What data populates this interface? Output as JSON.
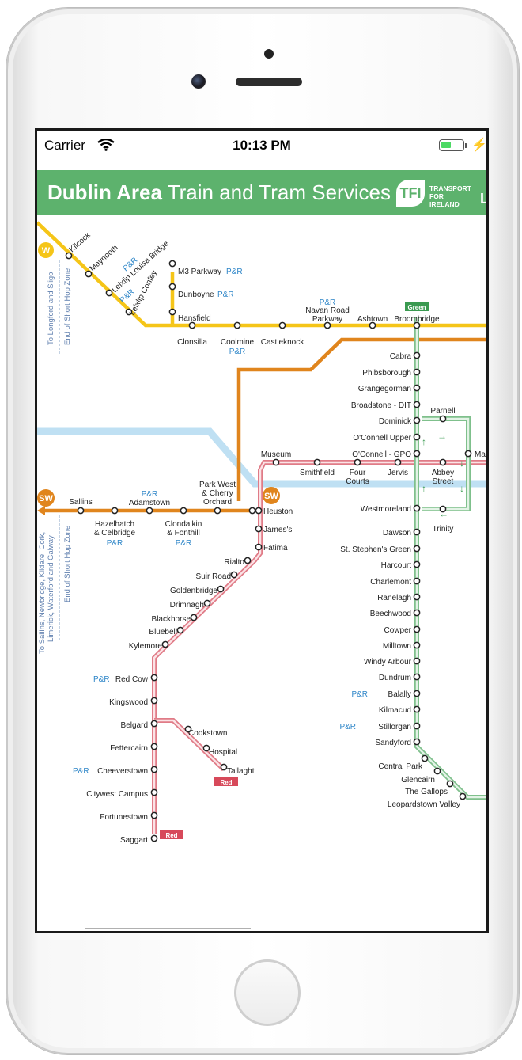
{
  "status_bar": {
    "carrier": "Carrier",
    "time": "10:13 PM"
  },
  "banner": {
    "title_bold": "Dublin Area",
    "title_rest": " Train and Tram Services",
    "logo": "TFI",
    "brand_lines": [
      "TRANSPORT",
      "FOR",
      "IRELAND"
    ],
    "cut_text": "Le"
  },
  "colors": {
    "banner": "#5db26d",
    "yellow_line": "#f5c518",
    "orange_line": "#e0851d",
    "red_luas": "#d7495a",
    "green_luas": "#5aa86a",
    "dart_blue": "#bfe0f3",
    "pr_blue": "#2e86c8"
  },
  "map": {
    "pr": "P&R",
    "badges": {
      "west": "W",
      "southwest": "SW",
      "heuston_sw": "SW"
    },
    "line_tags": {
      "green": "Green",
      "red1": "Red",
      "red2": "Red"
    },
    "side_notes": {
      "west_dest": "To Longford and Sligo",
      "west_zone": "End of Short Hop Zone",
      "sw_dest1": "To Sallins, Newbridge, Kildare, Cork,",
      "sw_dest2": "Limerick, Waterford and Galway",
      "sw_zone": "End of Short Hop Zone"
    },
    "yellow_stations": [
      "Kilcock",
      "Maynooth",
      "Leixlip Louisa Bridge",
      "Leixlip Confey",
      "M3 Parkway",
      "Dunboyne",
      "Hansfield",
      "Clonsilla",
      "Coolmine",
      "Castleknock",
      "Navan Road",
      "Parkway",
      "Ashtown",
      "Broombridge"
    ],
    "orange_stations": [
      "Sallins",
      "Hazelhatch",
      "& Celbridge",
      "Adamstown",
      "Clondalkin",
      "& Fonthill",
      "Park West",
      "& Cherry",
      "Orchard",
      "Heuston"
    ],
    "red_stations": [
      "Museum",
      "Smithfield",
      "Four",
      "Courts",
      "Jervis",
      "Abbey",
      "Street",
      "James's",
      "Fatima",
      "Rialto",
      "Suir Road",
      "Goldenbridge",
      "Drimnagh",
      "Blackhorse",
      "Bluebell",
      "Kylemore",
      "Red Cow",
      "Kingswood",
      "Belgard",
      "Fettercairn",
      "Cheeverstown",
      "Citywest Campus",
      "Fortunestown",
      "Saggart",
      "Cookstown",
      "Hospital",
      "Tallaght"
    ],
    "green_stations": [
      "Cabra",
      "Phibsborough",
      "Grangegorman",
      "Broadstone - DIT",
      "Dominick",
      "Parnell",
      "O'Connell Upper",
      "O'Connell - GPO",
      "Mar",
      "Westmoreland",
      "Trinity",
      "Dawson",
      "St. Stephen's Green",
      "Harcourt",
      "Charlemont",
      "Ranelagh",
      "Beechwood",
      "Cowper",
      "Milltown",
      "Windy Arbour",
      "Dundrum",
      "Balally",
      "Kilmacud",
      "Stillorgan",
      "Sandyford",
      "Central Park",
      "Glencairn",
      "The Gallops",
      "Leopardstown Valley"
    ]
  }
}
